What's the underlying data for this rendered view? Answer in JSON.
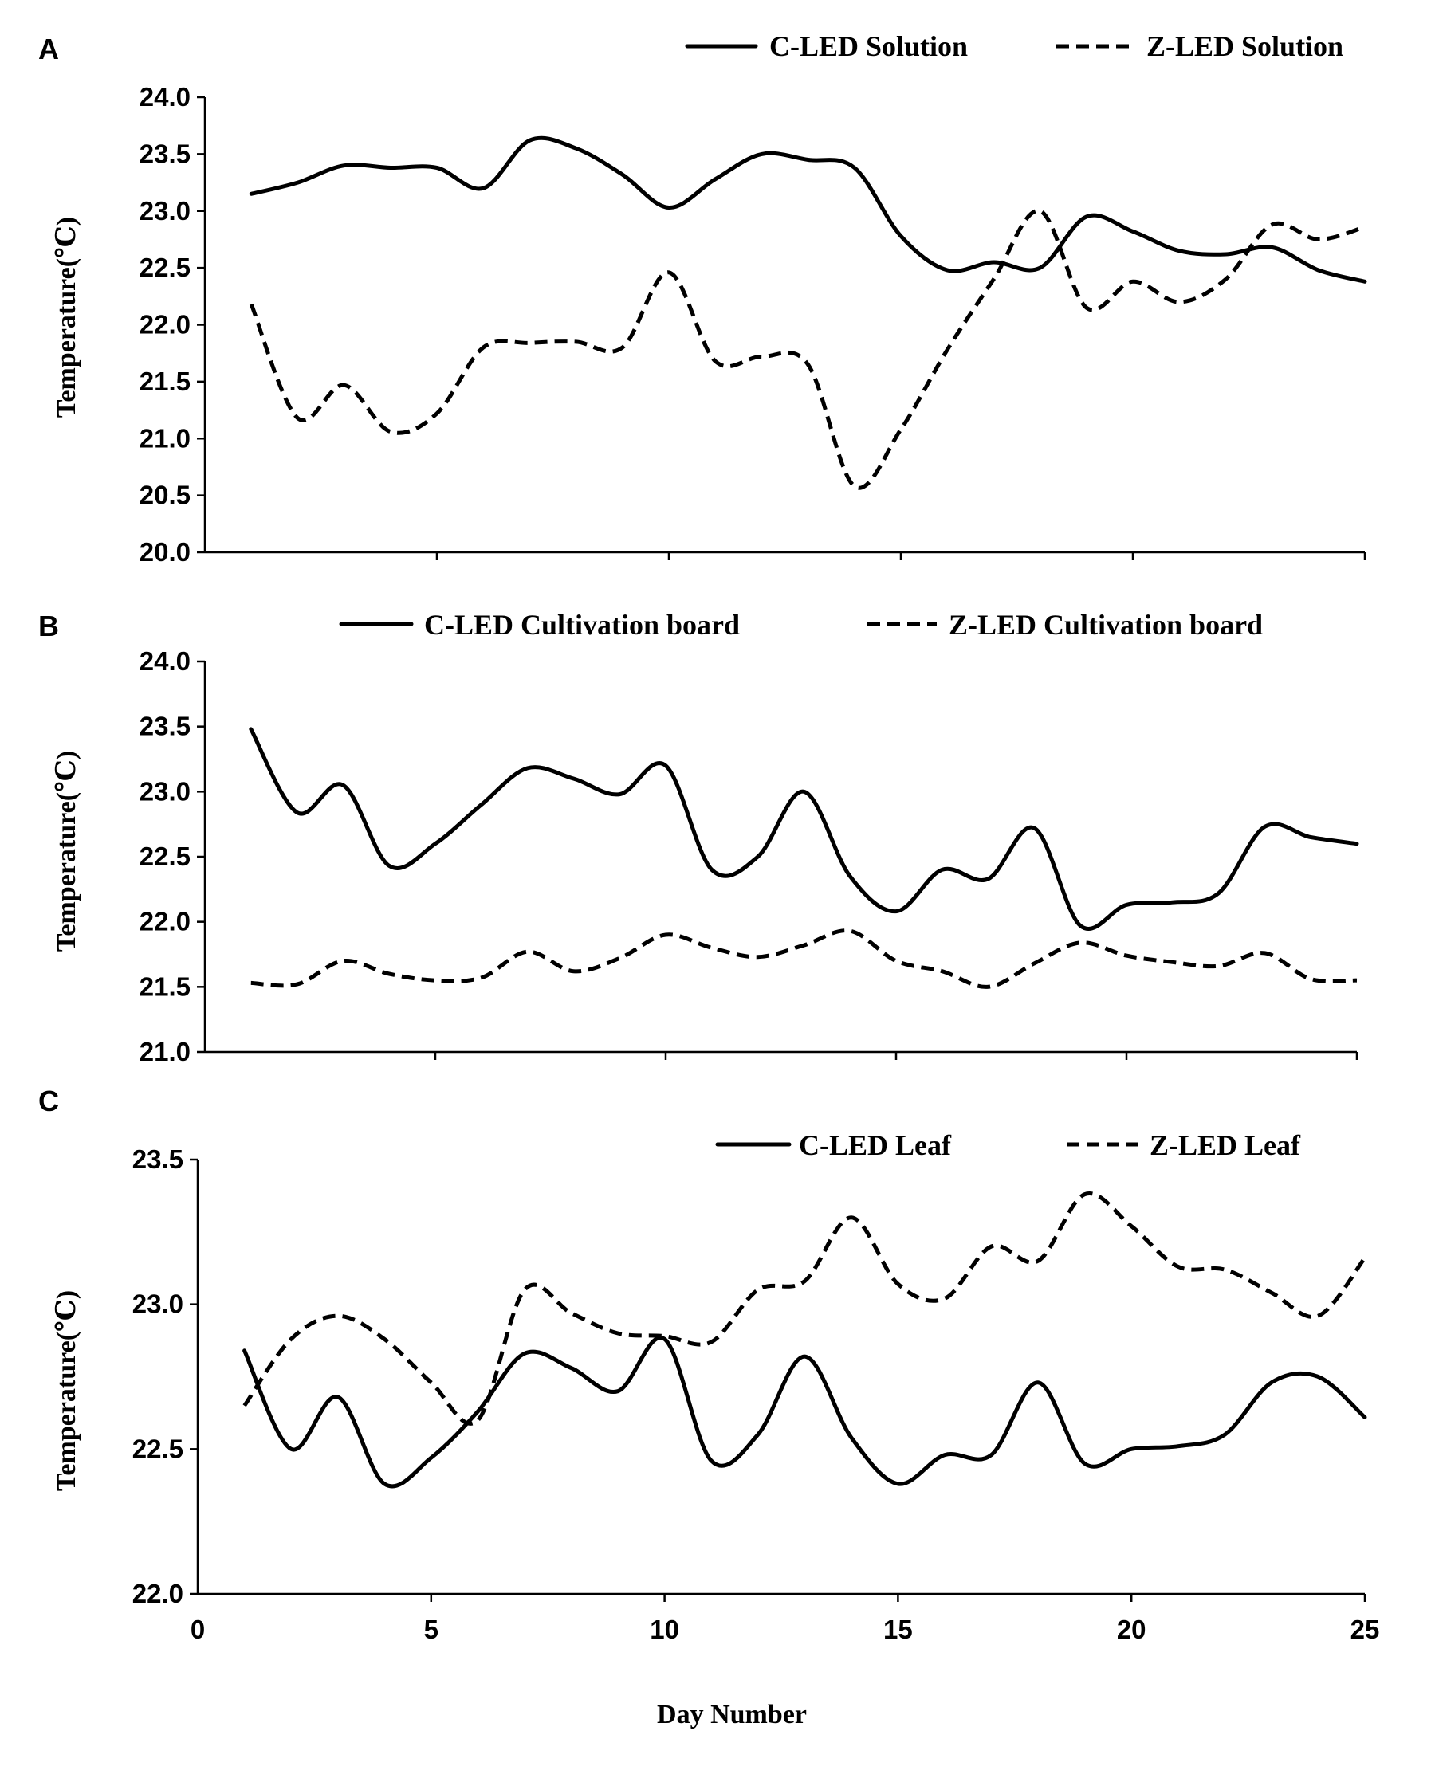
{
  "figure": {
    "xlabel": "Day Number",
    "ylabel": "Temperature(℃)",
    "x_ticks": [
      0,
      5,
      10,
      15,
      20,
      25
    ]
  },
  "chart_data": [
    {
      "panel": "A",
      "type": "line",
      "ylabel": "Temperature(℃)",
      "ylim": [
        20.0,
        24.0
      ],
      "y_ticks": [
        "24.0",
        "23.5",
        "23.0",
        "22.5",
        "22.0",
        "21.5",
        "21.0",
        "20.5",
        "20.0"
      ],
      "x": [
        1,
        2,
        3,
        4,
        5,
        6,
        7,
        8,
        9,
        10,
        11,
        12,
        13,
        14,
        15,
        16,
        17,
        18,
        19,
        20,
        21,
        22,
        23,
        24,
        25
      ],
      "series": [
        {
          "name": "C-LED Solution",
          "style": "solid",
          "values": [
            23.15,
            23.25,
            23.4,
            23.38,
            23.38,
            23.2,
            23.62,
            23.55,
            23.32,
            23.03,
            23.28,
            23.5,
            23.45,
            23.38,
            22.78,
            22.48,
            22.55,
            22.5,
            22.95,
            22.82,
            22.65,
            22.62,
            22.68,
            22.48,
            22.38
          ]
        },
        {
          "name": "Z-LED Solution",
          "style": "dashed",
          "values": [
            22.18,
            21.18,
            21.47,
            21.06,
            21.22,
            21.8,
            21.84,
            21.85,
            21.8,
            22.46,
            21.68,
            21.72,
            21.65,
            20.58,
            21.08,
            21.78,
            22.4,
            23.0,
            22.15,
            22.38,
            22.2,
            22.4,
            22.88,
            22.75,
            22.86
          ]
        }
      ],
      "legend": [
        "C-LED Solution",
        "Z-LED Solution"
      ]
    },
    {
      "panel": "B",
      "type": "line",
      "ylabel": "Temperature(℃)",
      "ylim": [
        21.0,
        24.0
      ],
      "y_ticks": [
        "24.0",
        "23.5",
        "23.0",
        "22.5",
        "22.0",
        "21.5",
        "21.0"
      ],
      "x": [
        1,
        2,
        3,
        4,
        5,
        6,
        7,
        8,
        9,
        10,
        11,
        12,
        13,
        14,
        15,
        16,
        17,
        18,
        19,
        20,
        21,
        22,
        23,
        24,
        25
      ],
      "series": [
        {
          "name": "C-LED Cultivation board",
          "style": "solid",
          "values": [
            23.48,
            22.84,
            23.05,
            22.43,
            22.6,
            22.9,
            23.18,
            23.1,
            22.98,
            23.2,
            22.4,
            22.5,
            23.0,
            22.35,
            22.08,
            22.4,
            22.33,
            22.72,
            21.97,
            22.13,
            22.15,
            22.22,
            22.73,
            22.65,
            22.6
          ]
        },
        {
          "name": "Z-LED Cultivation board",
          "style": "dashed",
          "values": [
            21.53,
            21.52,
            21.7,
            21.6,
            21.55,
            21.57,
            21.77,
            21.62,
            21.72,
            21.9,
            21.8,
            21.73,
            21.82,
            21.93,
            21.7,
            21.62,
            21.5,
            21.68,
            21.84,
            21.74,
            21.69,
            21.66,
            21.76,
            21.56,
            21.55
          ]
        }
      ],
      "legend": [
        "C-LED Cultivation board",
        "Z-LED Cultivation board"
      ]
    },
    {
      "panel": "C",
      "type": "line",
      "ylabel": "Temperature(℃)",
      "xlabel": "Day Number",
      "ylim": [
        22.0,
        23.5
      ],
      "y_ticks": [
        "23.5",
        "23.0",
        "22.5",
        "22.0"
      ],
      "x_ticks": [
        "0",
        "5",
        "10",
        "15",
        "20",
        "25"
      ],
      "x": [
        1,
        2,
        3,
        4,
        5,
        6,
        7,
        8,
        9,
        10,
        11,
        12,
        13,
        14,
        15,
        16,
        17,
        18,
        19,
        20,
        21,
        22,
        23,
        24,
        25
      ],
      "series": [
        {
          "name": "C-LED Leaf",
          "style": "solid",
          "values": [
            22.84,
            22.5,
            22.68,
            22.38,
            22.47,
            22.63,
            22.83,
            22.78,
            22.7,
            22.88,
            22.46,
            22.55,
            22.82,
            22.54,
            22.38,
            22.48,
            22.48,
            22.73,
            22.45,
            22.5,
            22.51,
            22.55,
            22.73,
            22.75,
            22.61
          ]
        },
        {
          "name": "Z-LED Leaf",
          "style": "dashed",
          "values": [
            22.65,
            22.88,
            22.96,
            22.88,
            22.73,
            22.6,
            23.05,
            22.97,
            22.9,
            22.89,
            22.87,
            23.05,
            23.08,
            23.3,
            23.07,
            23.02,
            23.2,
            23.15,
            23.38,
            23.27,
            23.13,
            23.12,
            23.04,
            22.96,
            23.16
          ]
        }
      ],
      "legend": [
        "C-LED Leaf",
        "Z-LED Leaf"
      ]
    }
  ]
}
